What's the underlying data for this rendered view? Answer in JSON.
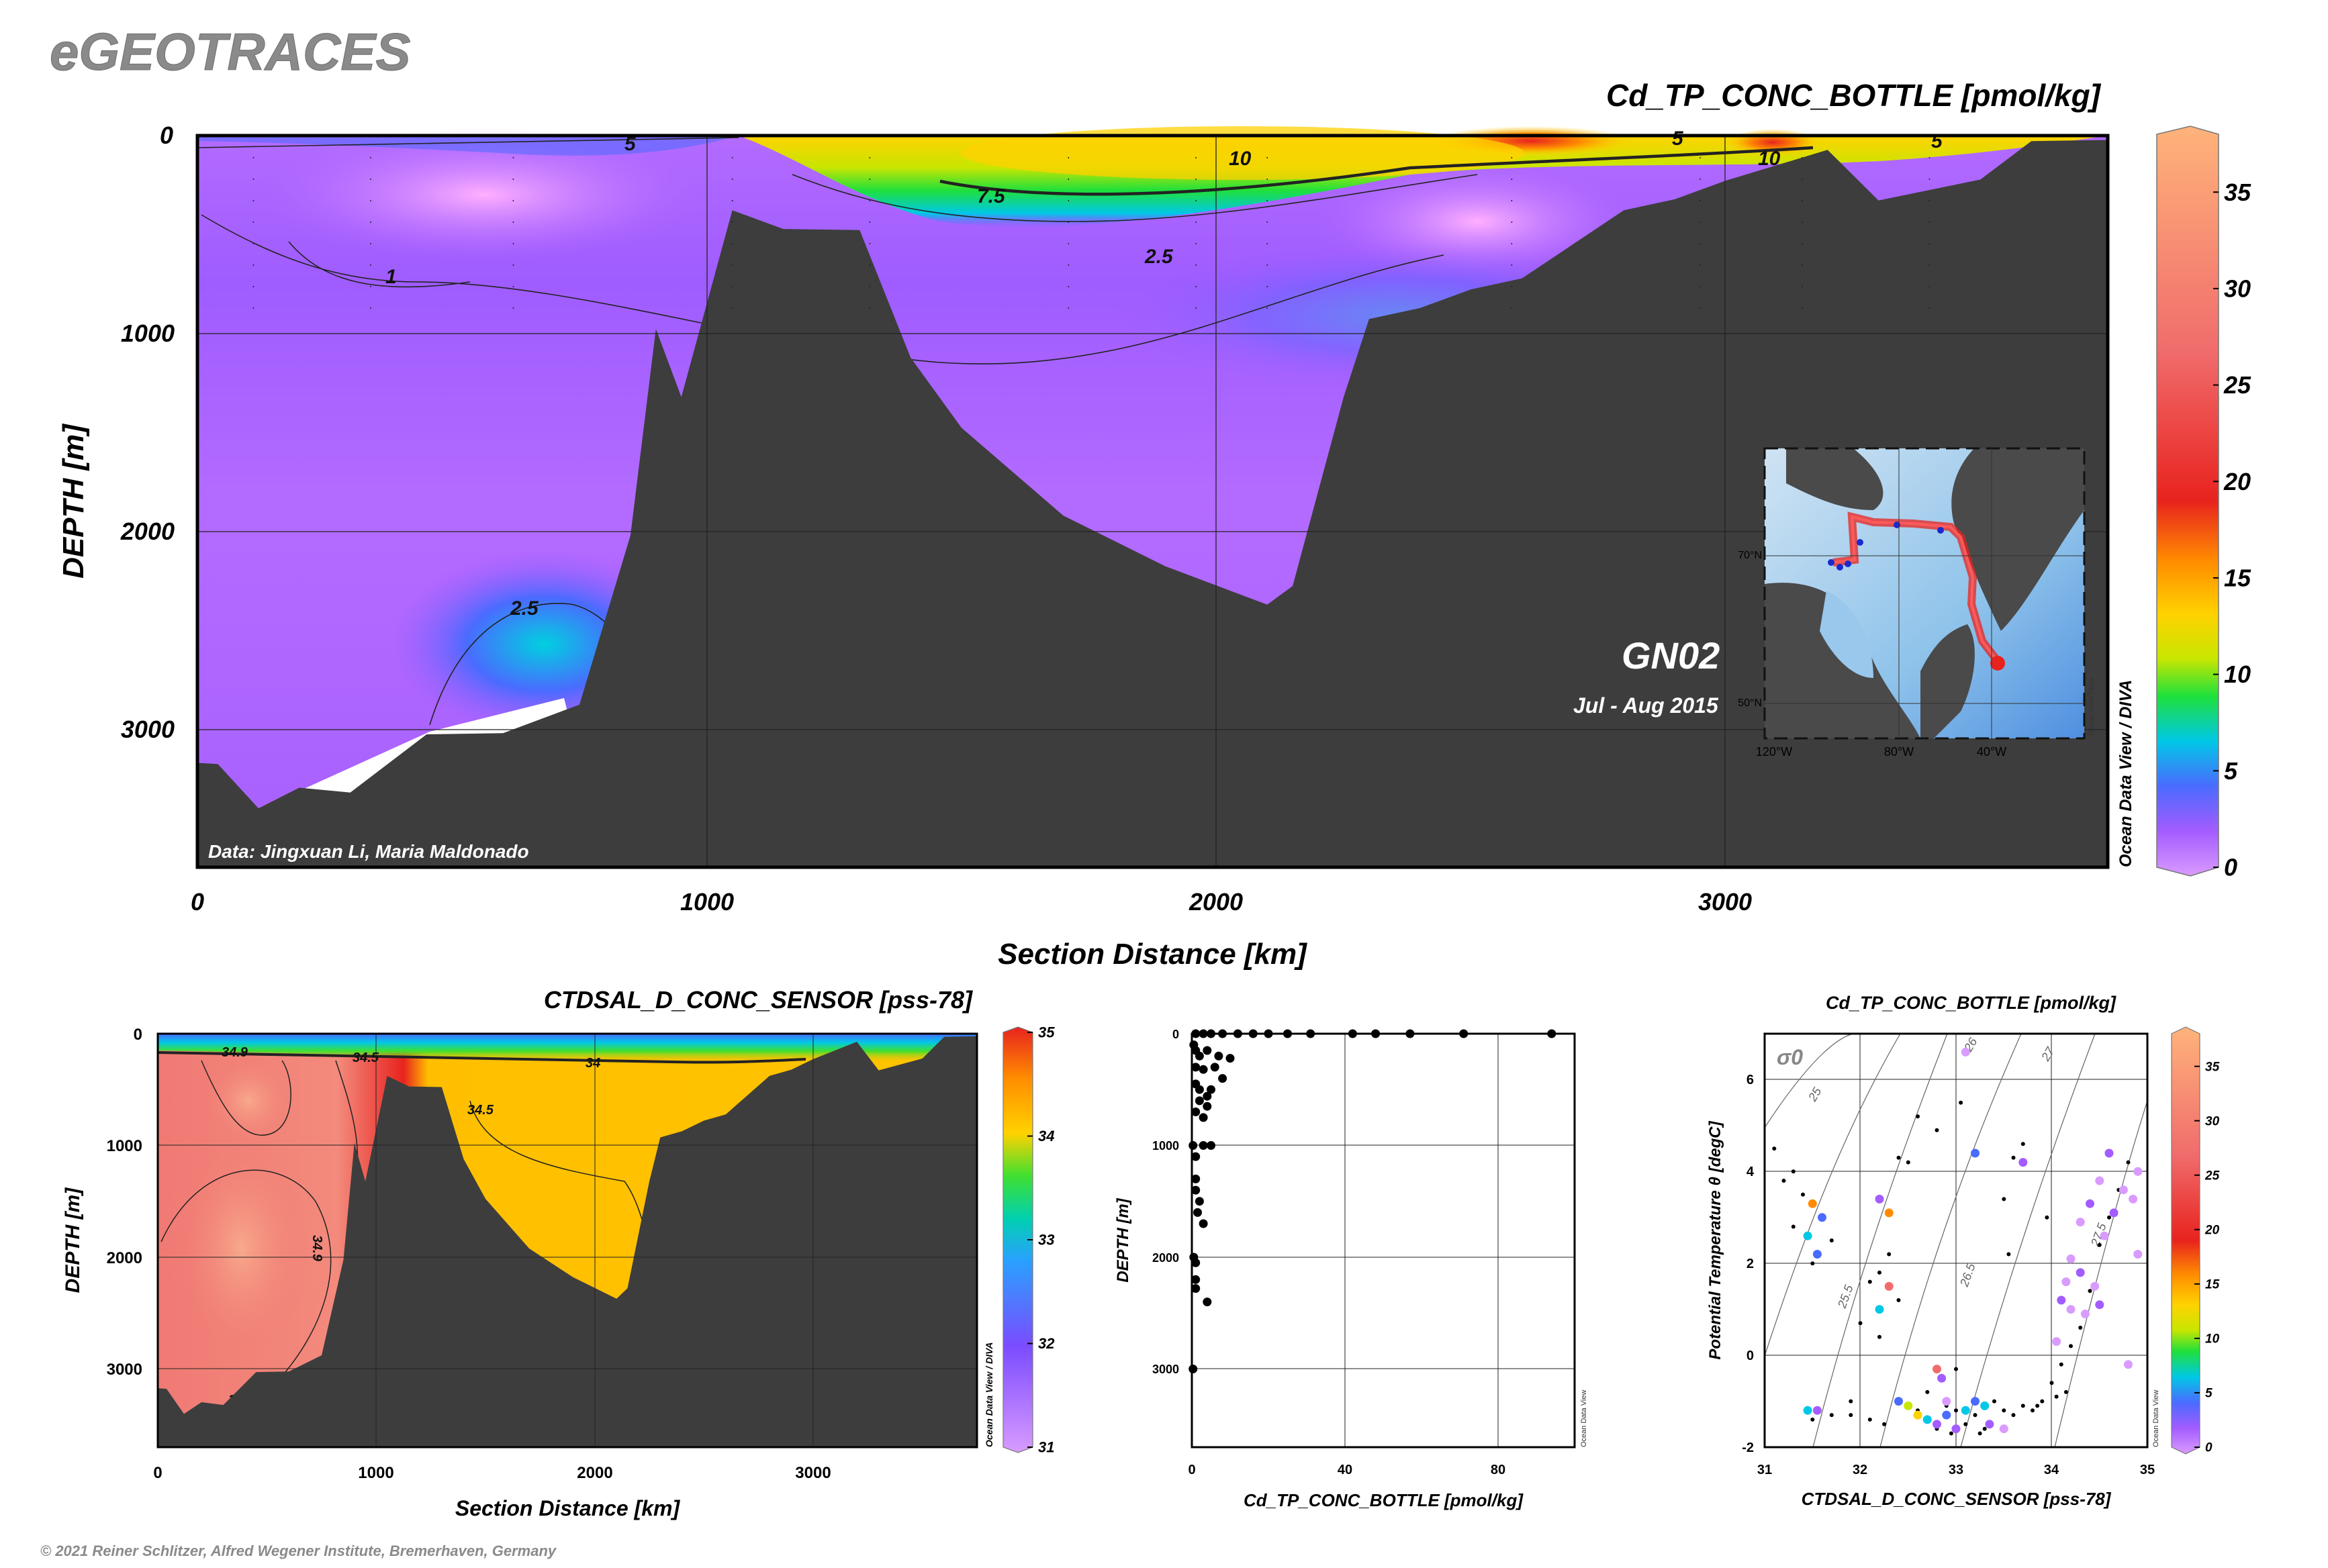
{
  "brand": "eGEOTRACES",
  "copyright": "© 2021 Reiner Schlitzer, Alfred Wegener Institute, Bremerhaven, Germany",
  "colors": {
    "seafloor": "#3d3d3d",
    "scale": [
      "#d99bff",
      "#a35cff",
      "#4a6bff",
      "#00c8e6",
      "#1fe03b",
      "#c8e600",
      "#ffd200",
      "#ff8c00",
      "#e8231e",
      "#f06c6c",
      "#ffb37a"
    ]
  },
  "chart_data": [
    {
      "type": "heatmap",
      "name": "main-section",
      "title": "Cd_TP_CONC_BOTTLE [pmol/kg]",
      "xlabel": "Section Distance [km]",
      "ylabel": "DEPTH [m]",
      "xlim": [
        0,
        3750
      ],
      "ylim": [
        3700,
        0
      ],
      "x_ticks": [
        "0",
        "1000",
        "2000",
        "3000"
      ],
      "y_ticks": [
        "0",
        "1000",
        "2000",
        "3000"
      ],
      "colorbar": {
        "min": 0,
        "max": 38,
        "ticks": [
          "0",
          "5",
          "10",
          "15",
          "20",
          "25",
          "30",
          "35"
        ]
      },
      "contour_labels": [
        "5",
        "10",
        "7.5",
        "2.5",
        "1",
        "2.5",
        "10",
        "5",
        "5"
      ],
      "section_label": "GN02",
      "period": "Jul - Aug 2015",
      "credit": "Data: Jingxuan Li, Maria Maldonado",
      "side_label": "Ocean Data View / DIVA",
      "inset_map": {
        "lat_labels": [
          "70°N",
          "50°N"
        ],
        "lon_labels": [
          "120°W",
          "80°W",
          "40°W"
        ],
        "side_label": "Ocean Data View"
      },
      "seafloor_profile": {
        "x": [
          0,
          40,
          120,
          200,
          300,
          450,
          600,
          750,
          850,
          900,
          950,
          1050,
          1150,
          1300,
          1400,
          1500,
          1700,
          1900,
          2100,
          2150,
          2250,
          2300,
          2400,
          2500,
          2600,
          2800,
          2900,
          3000,
          3200,
          3300,
          3500,
          3600,
          3750
        ],
        "depth": [
          3150,
          3200,
          3380,
          3320,
          3300,
          3050,
          3000,
          2900,
          2000,
          1000,
          1300,
          400,
          450,
          500,
          1100,
          1500,
          1900,
          2200,
          2350,
          2300,
          1300,
          950,
          850,
          800,
          700,
          400,
          300,
          250,
          50,
          350,
          200,
          50,
          0
        ]
      },
      "stations_km": [
        0,
        110,
        340,
        620,
        1050,
        1320,
        1710,
        1960,
        2100,
        2580,
        2950,
        3150,
        3400
      ]
    },
    {
      "type": "heatmap",
      "name": "salinity-section",
      "title": "CTDSAL_D_CONC_SENSOR [pss-78]",
      "xlabel": "Section Distance [km]",
      "ylabel": "DEPTH [m]",
      "xlim": [
        0,
        3750
      ],
      "ylim": [
        3700,
        0
      ],
      "x_ticks": [
        "0",
        "1000",
        "2000",
        "3000"
      ],
      "y_ticks": [
        "0",
        "1000",
        "2000",
        "3000"
      ],
      "colorbar": {
        "min": 31,
        "max": 35,
        "ticks": [
          "31",
          "32",
          "33",
          "34",
          "35"
        ]
      },
      "contour_labels": [
        "34.9",
        "34.5",
        "34",
        "34.5",
        "34.9",
        "34.9"
      ],
      "side_label": "Ocean Data View / DIVA"
    },
    {
      "type": "scatter",
      "name": "profile-plot",
      "xlabel": "Cd_TP_CONC_BOTTLE [pmol/kg]",
      "ylabel": "DEPTH [m]",
      "xlim": [
        0,
        100
      ],
      "ylim": [
        3700,
        0
      ],
      "x_ticks": [
        "0",
        "40",
        "80"
      ],
      "y_ticks": [
        "0",
        "1000",
        "2000",
        "3000"
      ],
      "side_label": "Ocean Data View",
      "points": [
        [
          1,
          0
        ],
        [
          3,
          0
        ],
        [
          5,
          0
        ],
        [
          8,
          0
        ],
        [
          12,
          0
        ],
        [
          16,
          0
        ],
        [
          20,
          0
        ],
        [
          25,
          0
        ],
        [
          31,
          0
        ],
        [
          42,
          0
        ],
        [
          48,
          0
        ],
        [
          57,
          0
        ],
        [
          71,
          0
        ],
        [
          94,
          0
        ],
        [
          0.5,
          100
        ],
        [
          1,
          150
        ],
        [
          2,
          200
        ],
        [
          4,
          150
        ],
        [
          7,
          200
        ],
        [
          10,
          220
        ],
        [
          1,
          300
        ],
        [
          3,
          320
        ],
        [
          6,
          300
        ],
        [
          8,
          400
        ],
        [
          1,
          450
        ],
        [
          5,
          500
        ],
        [
          2,
          600
        ],
        [
          4,
          650
        ],
        [
          1,
          700
        ],
        [
          3,
          750
        ],
        [
          0.3,
          1000
        ],
        [
          3,
          1000
        ],
        [
          5,
          1000
        ],
        [
          2,
          500
        ],
        [
          4,
          560
        ],
        [
          1,
          1100
        ],
        [
          1,
          1300
        ],
        [
          1.5,
          1600
        ],
        [
          1,
          1400
        ],
        [
          2,
          1500
        ],
        [
          3,
          1700
        ],
        [
          0.5,
          2000
        ],
        [
          1,
          2050
        ],
        [
          1,
          2200
        ],
        [
          1,
          2280
        ],
        [
          4,
          2400
        ],
        [
          0.3,
          3000
        ]
      ]
    },
    {
      "type": "scatter",
      "name": "ts-diagram",
      "title": "Cd_TP_CONC_BOTTLE [pmol/kg]",
      "xlabel": "CTDSAL_D_CONC_SENSOR [pss-78]",
      "ylabel": "Potential Temperature θ [degC]",
      "xlim": [
        31,
        35
      ],
      "ylim": [
        -2,
        7
      ],
      "x_ticks": [
        "31",
        "32",
        "33",
        "34",
        "35"
      ],
      "y_ticks": [
        "-2",
        "0",
        "2",
        "4",
        "6"
      ],
      "sigma_label": "σ0",
      "isopycnals": [
        "25",
        "26",
        "27",
        "25.5",
        "26.5",
        "27.5"
      ],
      "colorbar": {
        "min": 0,
        "max": 38,
        "ticks": [
          "0",
          "5",
          "10",
          "15",
          "20",
          "25",
          "30",
          "35"
        ]
      },
      "side_label": "Ocean Data View",
      "points": [
        {
          "s": 31.5,
          "t": 3.3,
          "v": 16
        },
        {
          "s": 31.45,
          "t": 2.6,
          "v": 7
        },
        {
          "s": 31.55,
          "t": 2.2,
          "v": 6
        },
        {
          "s": 31.6,
          "t": 3.0,
          "v": 5
        },
        {
          "s": 31.45,
          "t": -1.2,
          "v": 8
        },
        {
          "s": 31.55,
          "t": -1.2,
          "v": 4
        },
        {
          "s": 32.2,
          "t": 3.4,
          "v": 3
        },
        {
          "s": 32.3,
          "t": 3.1,
          "v": 19
        },
        {
          "s": 32.3,
          "t": 1.5,
          "v": 32
        },
        {
          "s": 32.4,
          "t": -1.0,
          "v": 6
        },
        {
          "s": 32.5,
          "t": -1.1,
          "v": 12
        },
        {
          "s": 32.6,
          "t": -1.3,
          "v": 14
        },
        {
          "s": 32.7,
          "t": -1.4,
          "v": 9
        },
        {
          "s": 32.8,
          "t": -1.5,
          "v": 4
        },
        {
          "s": 32.9,
          "t": -1.3,
          "v": 6
        },
        {
          "s": 33.0,
          "t": -1.6,
          "v": 3
        },
        {
          "s": 33.1,
          "t": -1.2,
          "v": 8
        },
        {
          "s": 33.2,
          "t": -1.0,
          "v": 5
        },
        {
          "s": 33.3,
          "t": -1.1,
          "v": 7
        },
        {
          "s": 33.35,
          "t": -1.5,
          "v": 3
        },
        {
          "s": 33.5,
          "t": -1.6,
          "v": 2
        },
        {
          "s": 32.8,
          "t": -0.3,
          "v": 30
        },
        {
          "s": 32.85,
          "t": -0.5,
          "v": 4
        },
        {
          "s": 32.9,
          "t": -1.0,
          "v": 1
        },
        {
          "s": 33.1,
          "t": 6.6,
          "v": 2
        },
        {
          "s": 32.2,
          "t": 1.0,
          "v": 8
        },
        {
          "s": 33.2,
          "t": 4.4,
          "v": 6
        },
        {
          "s": 34.05,
          "t": 0.3,
          "v": 2
        },
        {
          "s": 34.1,
          "t": 1.2,
          "v": 3
        },
        {
          "s": 34.15,
          "t": 1.6,
          "v": 2
        },
        {
          "s": 34.2,
          "t": 2.1,
          "v": 1
        },
        {
          "s": 34.3,
          "t": 2.9,
          "v": 2
        },
        {
          "s": 34.4,
          "t": 3.3,
          "v": 3
        },
        {
          "s": 34.5,
          "t": 3.8,
          "v": 2
        },
        {
          "s": 34.6,
          "t": 4.4,
          "v": 4
        },
        {
          "s": 34.75,
          "t": 3.6,
          "v": 1
        },
        {
          "s": 34.85,
          "t": 3.4,
          "v": 2
        },
        {
          "s": 34.9,
          "t": 2.2,
          "v": 1
        },
        {
          "s": 34.8,
          "t": -0.2,
          "v": 2
        },
        {
          "s": 34.5,
          "t": 1.1,
          "v": 3
        },
        {
          "s": 34.45,
          "t": 1.5,
          "v": 1
        },
        {
          "s": 34.55,
          "t": 2.6,
          "v": 2
        },
        {
          "s": 34.65,
          "t": 3.1,
          "v": 3
        },
        {
          "s": 34.9,
          "t": 4.0,
          "v": 1
        },
        {
          "s": 34.3,
          "t": 1.8,
          "v": 3
        },
        {
          "s": 34.2,
          "t": 1.0,
          "v": 2
        },
        {
          "s": 34.35,
          "t": 0.9,
          "v": 1
        },
        {
          "s": 33.7,
          "t": 4.2,
          "v": 3
        }
      ],
      "small_points": [
        [
          31.1,
          4.5
        ],
        [
          31.3,
          4.0
        ],
        [
          31.2,
          3.8
        ],
        [
          31.4,
          3.5
        ],
        [
          31.6,
          3.0
        ],
        [
          31.7,
          2.5
        ],
        [
          31.3,
          2.8
        ],
        [
          31.5,
          2.0
        ],
        [
          31.9,
          -1.0
        ],
        [
          31.5,
          -1.4
        ],
        [
          31.9,
          -1.3
        ],
        [
          32.1,
          -1.4
        ],
        [
          32.0,
          0.7
        ],
        [
          32.2,
          0.4
        ],
        [
          32.3,
          2.2
        ],
        [
          32.4,
          1.2
        ],
        [
          32.5,
          4.2
        ],
        [
          32.6,
          -1.2
        ],
        [
          32.7,
          -0.8
        ],
        [
          32.8,
          -1.6
        ],
        [
          32.9,
          -1.1
        ],
        [
          33.0,
          -1.2
        ],
        [
          33.1,
          -1.5
        ],
        [
          33.2,
          -1.3
        ],
        [
          33.3,
          -1.6
        ],
        [
          33.4,
          -1.0
        ],
        [
          33.5,
          -1.2
        ],
        [
          33.6,
          -1.3
        ],
        [
          33.7,
          -1.1
        ],
        [
          33.8,
          -1.2
        ],
        [
          33.9,
          -1.0
        ],
        [
          34.0,
          -0.6
        ],
        [
          34.1,
          -0.2
        ],
        [
          34.2,
          0.2
        ],
        [
          34.3,
          0.6
        ],
        [
          34.4,
          1.4
        ],
        [
          34.5,
          2.4
        ],
        [
          34.6,
          3.0
        ],
        [
          34.7,
          3.6
        ],
        [
          34.8,
          4.2
        ],
        [
          33.5,
          3.4
        ],
        [
          33.6,
          4.3
        ],
        [
          33.55,
          2.2
        ],
        [
          33.0,
          -0.3
        ],
        [
          32.1,
          1.6
        ],
        [
          32.2,
          1.8
        ],
        [
          32.6,
          5.2
        ],
        [
          32.8,
          4.9
        ],
        [
          33.05,
          5.5
        ],
        [
          33.95,
          3.0
        ],
        [
          32.4,
          4.3
        ],
        [
          33.7,
          4.6
        ],
        [
          32.25,
          -1.5
        ],
        [
          31.7,
          -1.3
        ],
        [
          33.85,
          -1.1
        ],
        [
          34.15,
          -0.8
        ],
        [
          34.05,
          -0.9
        ],
        [
          32.95,
          -1.7
        ],
        [
          33.25,
          -1.7
        ]
      ]
    }
  ]
}
